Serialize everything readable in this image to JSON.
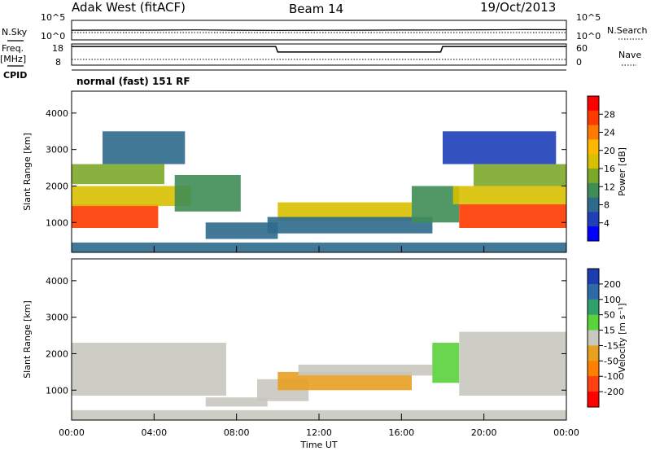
{
  "header": {
    "station": "Adak West (fitACF)",
    "beam": "Beam 14",
    "date": "19/Oct/2013"
  },
  "top_panels": {
    "nsky_label": "N.Sky",
    "nsearch_label": "N.Search",
    "freq_label_1": "Freq.",
    "freq_label_2": "[MHz]",
    "nave_label": "Nave",
    "cpid_label": "CPID",
    "cpid_text": "normal (fast) 151 RF",
    "noise_ticks_left": [
      "10^5",
      "10^0"
    ],
    "noise_ticks_right": [
      "10^5",
      "10^0"
    ],
    "freq_ticks": [
      "18",
      "8"
    ],
    "nave_ticks": [
      "60",
      "0"
    ]
  },
  "colorbars": {
    "power": {
      "label": "Power [dB]",
      "ticks": [
        "28",
        "24",
        "20",
        "16",
        "12",
        "8",
        "4"
      ],
      "colors": [
        "#ff0000",
        "#ff3a00",
        "#ff7a00",
        "#ffb800",
        "#d8c000",
        "#7ba82a",
        "#3f8d55",
        "#2d6a8c",
        "#1e3fb8",
        "#0000ff"
      ]
    },
    "velocity": {
      "label": "Velocity [m s⁻¹]",
      "ticks": [
        "200",
        "100",
        "50",
        "15",
        "-15",
        "-50",
        "-100",
        "-200"
      ],
      "colors": [
        "#1c3cb0",
        "#2e6aa8",
        "#32a06a",
        "#5ad23a",
        "#c8c8c0",
        "#e8a020",
        "#ff8000",
        "#ff4010",
        "#ff0000"
      ]
    }
  },
  "chart_data": [
    {
      "type": "line",
      "title": "N.Sky / N.Search",
      "ylim": [
        1,
        100000
      ],
      "yscale": "log",
      "x": [
        0,
        2,
        4,
        6,
        8,
        10,
        12,
        14,
        16,
        18,
        20,
        22,
        24
      ],
      "series": [
        {
          "name": "N.Sky",
          "values": [
            300,
            320,
            310,
            360,
            300,
            280,
            290,
            300,
            330,
            340,
            380,
            420,
            400
          ]
        }
      ]
    },
    {
      "type": "line",
      "title": "Freq. / Nave",
      "ylim": [
        8,
        18
      ],
      "x": [
        0,
        9.9,
        10.0,
        17.9,
        18.0,
        24
      ],
      "series": [
        {
          "name": "Freq.",
          "values": [
            16.8,
            16.8,
            14.2,
            14.2,
            16.8,
            16.8
          ]
        }
      ]
    },
    {
      "type": "heatmap",
      "title": "Power",
      "xlabel": "",
      "ylabel": "Slant Range [km]",
      "xlim": [
        0,
        24
      ],
      "ylim": [
        180,
        4600
      ],
      "yticks": [
        "1000",
        "2000",
        "3000",
        "4000"
      ],
      "value_range": [
        0,
        30
      ],
      "regions": [
        {
          "t0": 0.0,
          "t1": 4.2,
          "r0": 850,
          "r1": 1500,
          "level": 28
        },
        {
          "t0": 0.0,
          "t1": 5.8,
          "r0": 1450,
          "r1": 2000,
          "level": 17
        },
        {
          "t0": 0.0,
          "t1": 4.5,
          "r0": 2050,
          "r1": 2600,
          "level": 14
        },
        {
          "t0": 1.5,
          "t1": 5.5,
          "r0": 2600,
          "r1": 3500,
          "level": 6
        },
        {
          "t0": 5.0,
          "t1": 8.2,
          "r0": 1300,
          "r1": 2300,
          "level": 9
        },
        {
          "t0": 6.5,
          "t1": 10.0,
          "r0": 550,
          "r1": 1000,
          "level": 6
        },
        {
          "t0": 10.0,
          "t1": 16.5,
          "r0": 1050,
          "r1": 1550,
          "level": 18
        },
        {
          "t0": 9.5,
          "t1": 17.5,
          "r0": 700,
          "r1": 1150,
          "level": 7
        },
        {
          "t0": 16.5,
          "t1": 18.8,
          "r0": 1000,
          "r1": 2000,
          "level": 9
        },
        {
          "t0": 18.8,
          "t1": 24.0,
          "r0": 850,
          "r1": 1500,
          "level": 28
        },
        {
          "t0": 18.5,
          "t1": 24.0,
          "r0": 1500,
          "r1": 2000,
          "level": 16
        },
        {
          "t0": 19.5,
          "t1": 24.0,
          "r0": 2000,
          "r1": 2600,
          "level": 13
        },
        {
          "t0": 18.0,
          "t1": 23.5,
          "r0": 2600,
          "r1": 3500,
          "level": 5
        },
        {
          "t0": 0.0,
          "t1": 24.0,
          "r0": 180,
          "r1": 450,
          "level": 8
        }
      ]
    },
    {
      "type": "heatmap",
      "title": "Velocity",
      "xlabel": "Time UT",
      "ylabel": "Slant Range [km]",
      "xlim": [
        0,
        24
      ],
      "ylim": [
        180,
        4600
      ],
      "xticks": [
        "00:00",
        "04:00",
        "08:00",
        "12:00",
        "16:00",
        "20:00",
        "00:00"
      ],
      "yticks": [
        "1000",
        "2000",
        "3000",
        "4000"
      ],
      "value_range": [
        -250,
        250
      ],
      "regions": [
        {
          "t0": 0.0,
          "t1": 7.5,
          "r0": 850,
          "r1": 2300,
          "velocity": 0
        },
        {
          "t0": 6.5,
          "t1": 9.5,
          "r0": 550,
          "r1": 800,
          "velocity": 30
        },
        {
          "t0": 9.0,
          "t1": 11.5,
          "r0": 700,
          "r1": 1300,
          "velocity": 0
        },
        {
          "t0": 10.0,
          "t1": 16.5,
          "r0": 1000,
          "r1": 1500,
          "velocity": -40
        },
        {
          "t0": 11.0,
          "t1": 17.5,
          "r0": 1400,
          "r1": 1700,
          "velocity": 0
        },
        {
          "t0": 17.5,
          "t1": 18.8,
          "r0": 1200,
          "r1": 2300,
          "velocity": 40
        },
        {
          "t0": 18.8,
          "t1": 24.0,
          "r0": 850,
          "r1": 2600,
          "velocity": 0
        },
        {
          "t0": 0.0,
          "t1": 24.0,
          "r0": 180,
          "r1": 450,
          "velocity": 20
        }
      ]
    }
  ]
}
